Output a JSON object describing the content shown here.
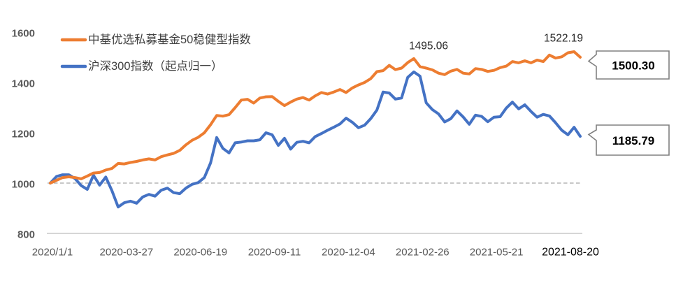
{
  "page": {
    "background_color": "#FFFFFF"
  },
  "chart_data": {
    "type": "line",
    "title": "",
    "legend_position": "top-left",
    "grid": {
      "horizontal_dashed_at": 1000,
      "baseline_axis_at": 800
    },
    "ylim": [
      800,
      1600
    ],
    "yticks": [
      "800",
      "1000",
      "1200",
      "1400",
      "1600"
    ],
    "x_labels": [
      "2020/1/1",
      "2020-03-27",
      "2020-06-19",
      "2020-09-11",
      "2020-12-04",
      "2021-02-26",
      "2021-05-21",
      "2021-08-20"
    ],
    "series": [
      {
        "name": "沪深300指数（起点归一）",
        "color": "#4472C4",
        "values": [
          1000,
          1026,
          1033,
          1033,
          1018,
          990,
          975,
          1031,
          992,
          1024,
          970,
          905,
          922,
          928,
          920,
          945,
          955,
          948,
          972,
          980,
          962,
          958,
          980,
          995,
          1002,
          1022,
          1080,
          1181,
          1138,
          1120,
          1160,
          1163,
          1168,
          1168,
          1172,
          1200,
          1192,
          1150,
          1178,
          1135,
          1162,
          1166,
          1160,
          1185,
          1197,
          1210,
          1222,
          1235,
          1258,
          1242,
          1220,
          1230,
          1256,
          1290,
          1362,
          1358,
          1334,
          1338,
          1420,
          1442,
          1425,
          1319,
          1292,
          1275,
          1243,
          1256,
          1287,
          1263,
          1234,
          1270,
          1265,
          1244,
          1262,
          1264,
          1298,
          1322,
          1295,
          1311,
          1285,
          1262,
          1273,
          1267,
          1240,
          1210,
          1192,
          1222,
          1185.79
        ]
      },
      {
        "name": "中基优选私募基金50稳健型指数",
        "color": "#ED7D31",
        "values": [
          1000,
          1011,
          1022,
          1025,
          1022,
          1017,
          1028,
          1040,
          1042,
          1052,
          1058,
          1078,
          1076,
          1082,
          1086,
          1092,
          1096,
          1092,
          1105,
          1112,
          1118,
          1130,
          1152,
          1170,
          1182,
          1200,
          1232,
          1269,
          1266,
          1272,
          1300,
          1330,
          1333,
          1318,
          1338,
          1343,
          1344,
          1325,
          1308,
          1322,
          1334,
          1340,
          1330,
          1347,
          1360,
          1354,
          1362,
          1372,
          1360,
          1378,
          1390,
          1400,
          1415,
          1443,
          1447,
          1468,
          1451,
          1457,
          1479,
          1495.06,
          1463,
          1457,
          1450,
          1437,
          1431,
          1445,
          1452,
          1437,
          1434,
          1455,
          1452,
          1444,
          1448,
          1459,
          1465,
          1483,
          1478,
          1486,
          1478,
          1489,
          1483,
          1509,
          1497,
          1502,
          1518,
          1522.19,
          1500.3
        ]
      }
    ],
    "legend_order": [
      "中基优选私募基金50稳健型指数",
      "沪深300指数（起点归一）"
    ],
    "annotations": [
      {
        "text": "1495.06",
        "series": "中基优选私募基金50稳健型指数"
      },
      {
        "text": "1522.19",
        "series": "中基优选私募基金50稳健型指数"
      }
    ],
    "callouts": [
      {
        "value": "1500.30",
        "series": "中基优选私募基金50稳健型指数"
      },
      {
        "value": "1185.79",
        "series": "沪深300指数（起点归一）"
      }
    ],
    "colors": {
      "fund_index_line": "#ED7D31",
      "csi300_line": "#4472C4",
      "axis_text": "#595959",
      "last_x_label_text": "#000000",
      "dashed_gridline": "#A6A6A6",
      "baseline_axis": "#C9C9C9",
      "legend_text": "#404040",
      "annotation_text": "#262626",
      "callout_border": "#808080"
    }
  }
}
